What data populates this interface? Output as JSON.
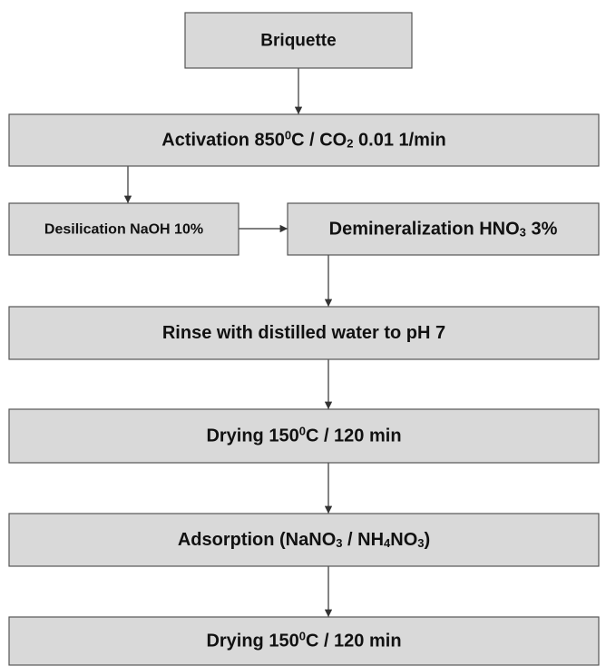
{
  "nodes": [
    {
      "parts": [
        {
          "text": "Briquette"
        }
      ]
    },
    {
      "parts": [
        {
          "text": "Activation 850"
        },
        {
          "text": "0",
          "pos": "sup"
        },
        {
          "text": "C / CO"
        },
        {
          "text": "2",
          "pos": "sub"
        },
        {
          "text": " 0.01 1/min"
        }
      ]
    },
    {
      "parts": [
        {
          "text": "Desilication NaOH 10%"
        }
      ]
    },
    {
      "parts": [
        {
          "text": "Demineralization HNO"
        },
        {
          "text": "3",
          "pos": "sub"
        },
        {
          "text": " 3%"
        }
      ]
    },
    {
      "parts": [
        {
          "text": "Rinse with distilled water to pH 7"
        }
      ]
    },
    {
      "parts": [
        {
          "text": "Drying 150"
        },
        {
          "text": "0",
          "pos": "sup"
        },
        {
          "text": "C / 120 min"
        }
      ]
    },
    {
      "parts": [
        {
          "text": "Adsorption (NaNO"
        },
        {
          "text": "3",
          "pos": "sub"
        },
        {
          "text": " / NH"
        },
        {
          "text": "4",
          "pos": "sub"
        },
        {
          "text": "NO"
        },
        {
          "text": "3",
          "pos": "sub"
        },
        {
          "text": ")"
        }
      ]
    },
    {
      "parts": [
        {
          "text": "Drying 150"
        },
        {
          "text": "0",
          "pos": "sup"
        },
        {
          "text": "C / 120 min"
        }
      ]
    }
  ]
}
